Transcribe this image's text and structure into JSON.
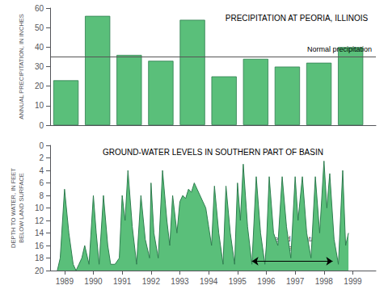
{
  "chart_data": [
    {
      "type": "bar",
      "title": "PRECIPITATION AT PEORIA, ILLINOIS",
      "ylabel": "ANNUAL PRECIPITATION, IN INCHES",
      "x": [
        1989,
        1990,
        1991,
        1992,
        1993,
        1994,
        1995,
        1996,
        1997,
        1998
      ],
      "values": [
        23,
        56,
        36,
        33,
        54,
        25,
        34,
        30,
        32,
        40
      ],
      "color": "#5abf7a",
      "edge_color": "#2e7d4f",
      "xlim": [
        1988.5,
        1998.8
      ],
      "ylim": [
        0,
        60
      ],
      "yticks": [
        0,
        10,
        20,
        30,
        40,
        50,
        60
      ],
      "tick_labels": "y",
      "grid": false,
      "hline": {
        "y": 35,
        "color": "#555555",
        "label": "Normal precipitation"
      }
    },
    {
      "type": "area",
      "title": "GROUND-WATER LEVELS IN SOUTHERN PART OF BASIN",
      "ylabel": "DEPTH TO WATER, IN FEET\nBELOW LAND SURFACE",
      "x": [
        1988.75,
        1988.85,
        1989.0,
        1989.15,
        1989.3,
        1989.4,
        1989.5,
        1989.6,
        1989.7,
        1989.85,
        1990.0,
        1990.1,
        1990.2,
        1990.35,
        1990.5,
        1990.6,
        1990.75,
        1990.9,
        1991.0,
        1991.1,
        1991.2,
        1991.35,
        1991.5,
        1991.65,
        1991.8,
        1991.95,
        1992.0,
        1992.1,
        1992.25,
        1992.4,
        1992.55,
        1992.65,
        1992.75,
        1992.9,
        1993.0,
        1993.1,
        1993.2,
        1993.3,
        1993.4,
        1993.5,
        1993.6,
        1993.7,
        1993.8,
        1993.9,
        1994.0,
        1994.1,
        1994.2,
        1994.35,
        1994.5,
        1994.6,
        1994.75,
        1994.9,
        1995.0,
        1995.1,
        1995.2,
        1995.35,
        1995.5,
        1995.65,
        1995.8,
        1995.95,
        1996.0,
        1996.1,
        1996.25,
        1996.4,
        1996.55,
        1996.7,
        1996.85,
        1997.0,
        1997.1,
        1997.25,
        1997.4,
        1997.55,
        1997.7,
        1997.85,
        1998.0,
        1998.1,
        1998.2,
        1998.35,
        1998.5,
        1998.65,
        1998.75,
        1998.85
      ],
      "values": [
        20,
        18,
        7,
        14,
        19,
        20,
        19,
        18,
        16,
        19,
        8,
        14,
        19,
        8,
        16,
        19,
        19,
        18,
        8,
        12,
        4,
        13,
        19,
        8,
        15,
        18,
        6,
        14,
        18,
        4,
        12,
        16,
        8,
        14,
        9,
        8,
        8.5,
        7,
        7.5,
        6,
        7,
        8,
        9,
        10,
        13,
        16,
        6.5,
        14,
        19,
        6.5,
        14,
        19,
        6,
        12,
        3,
        13,
        19,
        5,
        14,
        19,
        16,
        5,
        14,
        16,
        5,
        13,
        18,
        5,
        12,
        5,
        14,
        18,
        5,
        14,
        2.5,
        10,
        4.5,
        15,
        19,
        4,
        16,
        14
      ],
      "color": "#5abf7a",
      "edge_color": "#2e7d4f",
      "xlim": [
        1988.5,
        1999.8
      ],
      "xticks": [
        1989,
        1990,
        1991,
        1992,
        1993,
        1994,
        1995,
        1996,
        1997,
        1998,
        1999
      ],
      "ylim": [
        20,
        0
      ],
      "yticks": [
        0,
        2,
        4,
        6,
        8,
        10,
        12,
        14,
        16,
        18,
        20
      ],
      "grid": false,
      "annotations": [
        {
          "text": "Period of data\ncollection",
          "x": 1996.9,
          "y": 17.8,
          "arrow_x": [
            1995.5,
            1998.3
          ],
          "arrow_y": 18.5
        }
      ]
    }
  ]
}
